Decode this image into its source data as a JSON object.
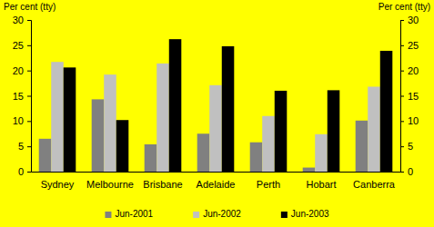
{
  "chart_data": {
    "type": "bar",
    "ylabel": "Per cent (tty)",
    "y2label": "Per cent (tty)",
    "categories": [
      "Sydney",
      "Melbourne",
      "Brisbane",
      "Adelaide",
      "Perth",
      "Hobart",
      "Canberra"
    ],
    "series": [
      {
        "name": "Jun-2001",
        "color": "#808080",
        "values": [
          6.5,
          14.3,
          5.4,
          7.5,
          5.8,
          0.8,
          10.1
        ]
      },
      {
        "name": "Jun-2002",
        "color": "#c0c0c0",
        "values": [
          21.7,
          19.2,
          21.4,
          17.1,
          11.0,
          7.4,
          16.8
        ]
      },
      {
        "name": "Jun-2003",
        "color": "#000000",
        "values": [
          20.6,
          10.2,
          26.2,
          24.8,
          16.0,
          16.1,
          23.9
        ]
      }
    ],
    "ylim": [
      0,
      30
    ],
    "yticks": [
      0,
      5,
      10,
      15,
      20,
      25,
      30
    ],
    "y2lim": [
      0,
      30
    ],
    "y2ticks": [
      0,
      5,
      10,
      15,
      20,
      25,
      30
    ],
    "grid": false,
    "legend": "bottom"
  }
}
